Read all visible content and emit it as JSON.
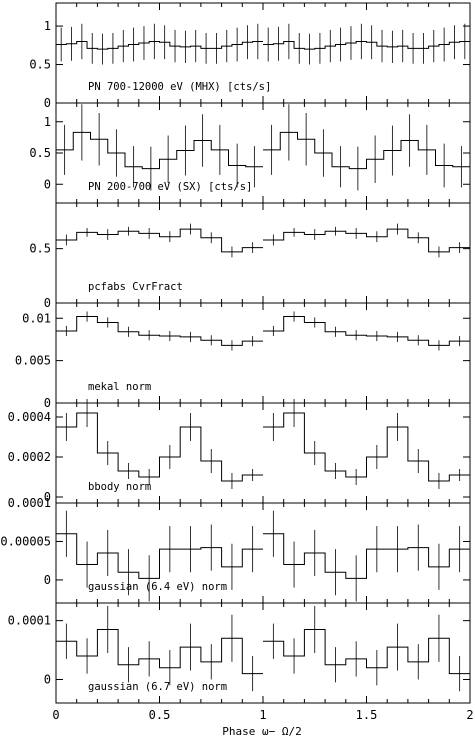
{
  "chart_data": {
    "type": "line",
    "layout": "stacked-panels",
    "x_axis": {
      "label": "Phase ω− Ω/2",
      "range": [
        0,
        2
      ],
      "ticks": [
        0,
        0.5,
        1,
        1.5,
        2
      ],
      "tick_labels": [
        "0",
        "0.5",
        "1",
        "1.5",
        "2"
      ]
    },
    "panels": [
      {
        "label": "PN 700-12000 eV (MHX) [cts/s]",
        "ylim": [
          0,
          1.3
        ],
        "yticks": [
          0,
          0.5,
          1
        ],
        "ytick_labels": [
          "0",
          "0.5",
          "1"
        ],
        "values": [
          0.76,
          0.77,
          0.8,
          0.71,
          0.7,
          0.71,
          0.74,
          0.76,
          0.78,
          0.8,
          0.79,
          0.74,
          0.73,
          0.74,
          0.71,
          0.71,
          0.74,
          0.76,
          0.79,
          0.8
        ],
        "errors": [
          0.22,
          0.22,
          0.23,
          0.2,
          0.2,
          0.2,
          0.21,
          0.22,
          0.22,
          0.23,
          0.22,
          0.21,
          0.21,
          0.21,
          0.2,
          0.2,
          0.21,
          0.22,
          0.22,
          0.23
        ]
      },
      {
        "label": "PN 200-700 eV (SX) [cts/s]",
        "ylim": [
          -0.3,
          1.3
        ],
        "yticks": [
          0,
          0.5,
          1
        ],
        "ytick_labels": [
          "0",
          "0.5",
          "1"
        ],
        "values": [
          0.55,
          0.83,
          0.72,
          0.5,
          0.28,
          0.25,
          0.4,
          0.54,
          0.7,
          0.55,
          0.3,
          0.28
        ],
        "errors": [
          0.4,
          0.45,
          0.42,
          0.38,
          0.33,
          0.35,
          0.38,
          0.4,
          0.42,
          0.4,
          0.35,
          0.33
        ]
      },
      {
        "label": "pcfabs CvrFract",
        "ylim": [
          0,
          0.92
        ],
        "yticks": [
          0,
          0.5
        ],
        "ytick_labels": [
          "0",
          "0.5"
        ],
        "values": [
          0.58,
          0.65,
          0.63,
          0.66,
          0.64,
          0.61,
          0.68,
          0.6,
          0.47,
          0.51
        ],
        "errors": [
          0.05,
          0.04,
          0.05,
          0.04,
          0.05,
          0.05,
          0.05,
          0.05,
          0.05,
          0.05
        ]
      },
      {
        "label": "mekal norm",
        "ylim": [
          0,
          0.0118
        ],
        "yticks": [
          0,
          0.005,
          0.01
        ],
        "ytick_labels": [
          "0",
          "0.005",
          "0.01"
        ],
        "values": [
          0.0085,
          0.0102,
          0.0095,
          0.0084,
          0.008,
          0.0079,
          0.0078,
          0.0074,
          0.0068,
          0.0073
        ],
        "errors": [
          0.0006,
          0.0006,
          0.0006,
          0.0006,
          0.0006,
          0.0006,
          0.0006,
          0.0006,
          0.0006,
          0.0006
        ]
      },
      {
        "label": "bbody norm",
        "ylim": [
          -3e-05,
          0.00047
        ],
        "yticks": [
          0,
          0.0002,
          0.0004
        ],
        "ytick_labels": [
          "0",
          "0.0002",
          "0.0004"
        ],
        "values": [
          0.00035,
          0.00042,
          0.00022,
          0.00013,
          0.0001,
          0.0002,
          0.00035,
          0.00018,
          8e-05,
          0.00011
        ],
        "errors": [
          7e-05,
          7e-05,
          6e-05,
          4e-05,
          4e-05,
          6e-05,
          7e-05,
          6e-05,
          4e-05,
          3e-05
        ]
      },
      {
        "label": "gaussian (6.4 eV) norm",
        "ylim": [
          -3e-05,
          0.0001
        ],
        "yticks": [
          0,
          5e-05,
          0.0001
        ],
        "ytick_labels": [
          "0",
          "0.00005",
          "0.0001"
        ],
        "values": [
          6e-05,
          2e-05,
          3.5e-05,
          1e-05,
          2e-06,
          4e-05,
          4e-05,
          4.2e-05,
          1.7e-05,
          4e-05
        ],
        "errors": [
          3e-05,
          3e-05,
          3e-05,
          3e-05,
          3e-05,
          3e-05,
          3e-05,
          3e-05,
          3e-05,
          3e-05
        ]
      },
      {
        "label": "gaussian (6.7 eV) norm",
        "ylim": [
          -4e-05,
          0.00013
        ],
        "yticks": [
          0,
          0.0001
        ],
        "ytick_labels": [
          "0",
          "0.0001"
        ],
        "values": [
          6.5e-05,
          4e-05,
          8.5e-05,
          2.5e-05,
          3.5e-05,
          2e-05,
          5.5e-05,
          3e-05,
          7e-05,
          1e-05
        ],
        "errors": [
          3e-05,
          3e-05,
          4e-05,
          3e-05,
          3e-05,
          3e-05,
          4e-05,
          3e-05,
          4e-05,
          3e-05
        ]
      }
    ]
  }
}
